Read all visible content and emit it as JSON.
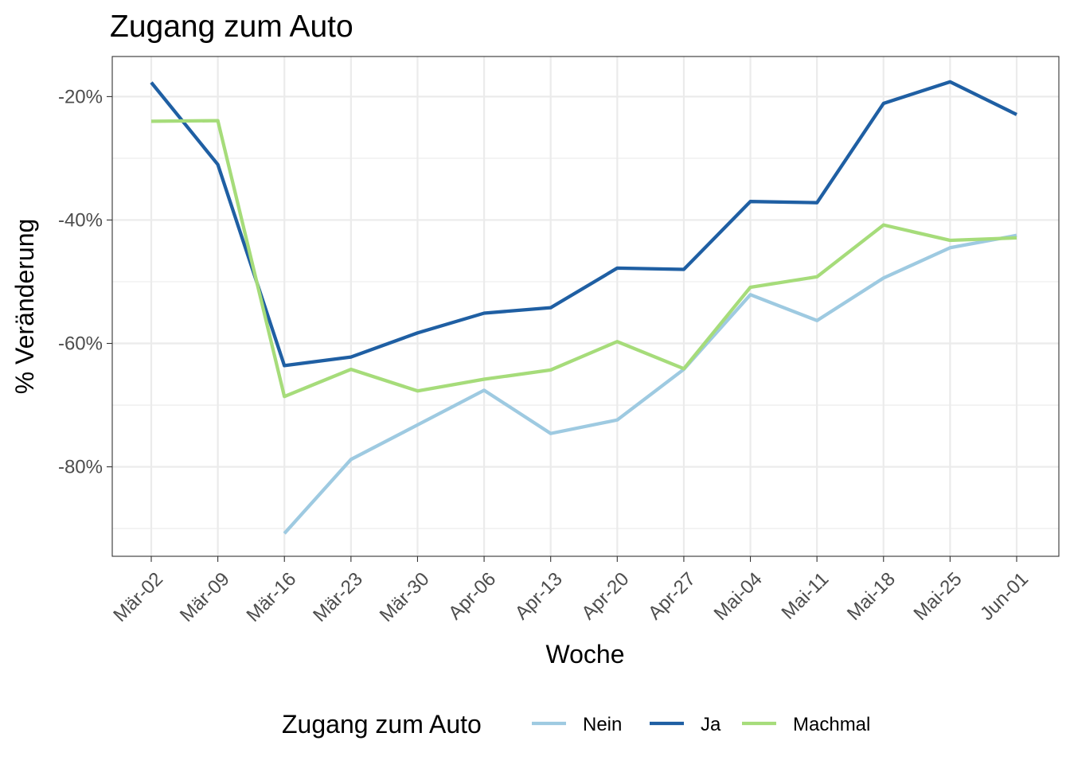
{
  "chart_data": {
    "type": "line",
    "title": "Zugang zum Auto",
    "xlabel": "Woche",
    "ylabel": "% Veränderung",
    "categories": [
      "Mär-02",
      "Mär-09",
      "Mär-16",
      "Mär-23",
      "Mär-30",
      "Apr-06",
      "Apr-13",
      "Apr-20",
      "Apr-27",
      "Mai-04",
      "Mai-11",
      "Mai-18",
      "Mai-25",
      "Jun-01"
    ],
    "ylim": [
      -94.5,
      -13.5
    ],
    "yticks": [
      -20,
      -40,
      -60,
      -80
    ],
    "ytick_labels": [
      "-20%",
      "-40%",
      "-60%",
      "-80%"
    ],
    "grid": true,
    "legend": {
      "title": "Zugang zum Auto",
      "position": "bottom"
    },
    "series": [
      {
        "name": "Nein",
        "color": "#9ecae1",
        "values": [
          null,
          null,
          -90.8,
          -78.8,
          -73.2,
          -67.6,
          -74.6,
          -72.4,
          -64.2,
          -52.1,
          -56.3,
          -49.4,
          -44.5,
          -42.5
        ]
      },
      {
        "name": "Ja",
        "color": "#1f5fa3",
        "values": [
          -17.7,
          -31.0,
          -63.6,
          -62.2,
          -58.3,
          -55.1,
          -54.2,
          -47.8,
          -48.0,
          -37.0,
          -37.2,
          -21.1,
          -17.6,
          -22.9
        ]
      },
      {
        "name": "Machmal",
        "color": "#a6dc7a",
        "values": [
          -24.0,
          -23.9,
          -68.6,
          -64.2,
          -67.7,
          -65.8,
          -64.3,
          -59.7,
          -64.1,
          -50.9,
          -49.2,
          -40.8,
          -43.3,
          -42.9
        ]
      }
    ]
  }
}
